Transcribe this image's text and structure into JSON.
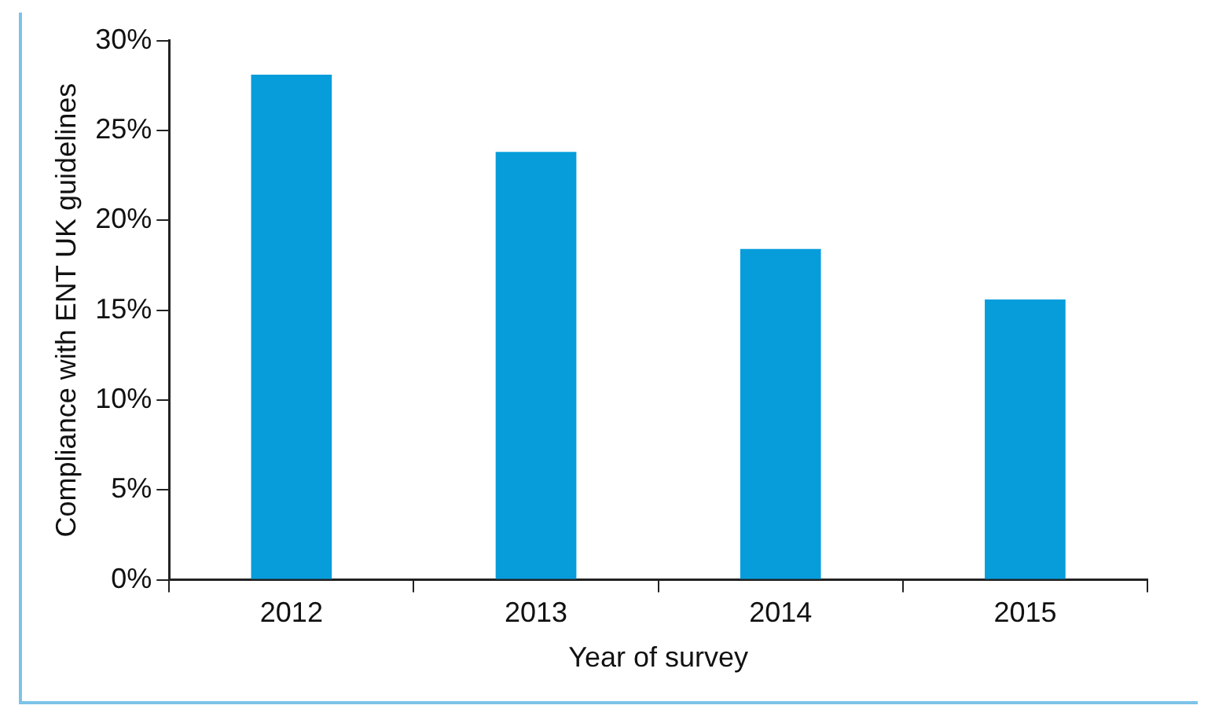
{
  "chart_data": {
    "type": "bar",
    "xlabel": "Year of survey",
    "ylabel": "Compliance with ENT UK guidelines",
    "categories": [
      "2012",
      "2013",
      "2014",
      "2015"
    ],
    "values": [
      28.1,
      23.8,
      18.4,
      15.6
    ],
    "color": "#079ddb",
    "ylim": [
      0,
      30
    ],
    "yticks": [
      {
        "value": 0,
        "label": "0%"
      },
      {
        "value": 5,
        "label": "5%"
      },
      {
        "value": 10,
        "label": "10%"
      },
      {
        "value": 15,
        "label": "15%"
      },
      {
        "value": 20,
        "label": "20%"
      },
      {
        "value": 25,
        "label": "25%"
      },
      {
        "value": 30,
        "label": "30%"
      }
    ],
    "grid": false,
    "legend": false
  }
}
